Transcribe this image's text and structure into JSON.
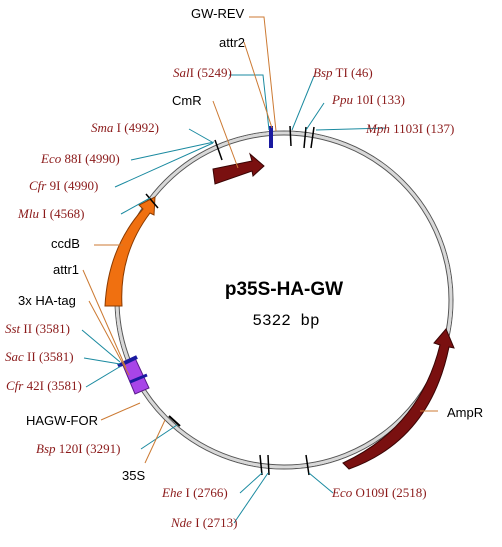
{
  "plasmid": {
    "name": "p35S-HA-GW",
    "size_label": "5322 bp",
    "backbone_color": "#c8c8c8",
    "site_line_color": "#1a8aa0",
    "feature_line_color": "#cc7a33"
  },
  "features": [
    {
      "key": "gwrev",
      "label": "GW-REV",
      "type": "primer",
      "color": "#1a1aa0"
    },
    {
      "key": "attr2",
      "label": "attr2",
      "type": "site",
      "color": "#1a1aa0"
    },
    {
      "key": "cmr",
      "label": "CmR",
      "type": "arrow",
      "color": "#7a1010"
    },
    {
      "key": "ccdb",
      "label": "ccdB",
      "type": "arrow",
      "color": "#f07010"
    },
    {
      "key": "attr1",
      "label": "attr1",
      "type": "site",
      "color": "#1a1aa0"
    },
    {
      "key": "ha",
      "label": "3x HA-tag",
      "type": "box",
      "color": "#a845e8"
    },
    {
      "key": "hagw",
      "label": "HAGW-FOR",
      "type": "primer",
      "color": "#1a1aa0"
    },
    {
      "key": "p35s",
      "label": "35S",
      "type": "promoter",
      "color": "#000000"
    },
    {
      "key": "ampr",
      "label": "AmpR",
      "type": "arrow",
      "color": "#7a1010"
    }
  ],
  "sites": [
    {
      "key": "sali",
      "name": "Sal",
      "suffix": "I",
      "pos": "(5249)"
    },
    {
      "key": "bspti",
      "name": "Bsp",
      "suffix": "TI",
      "pos": "(46)"
    },
    {
      "key": "ppu",
      "name": "Ppu",
      "suffix": "10I",
      "pos": "(133)"
    },
    {
      "key": "mph",
      "name": "Mph",
      "suffix": "1103I",
      "pos": "(137)"
    },
    {
      "key": "sma",
      "name": "Sma",
      "suffix": "I",
      "pos": "(4992)"
    },
    {
      "key": "eco88",
      "name": "Eco",
      "suffix": "88I",
      "pos": "(4990)"
    },
    {
      "key": "cfr9",
      "name": "Cfr",
      "suffix": "9I",
      "pos": "(4990)"
    },
    {
      "key": "mlu",
      "name": "Mlu",
      "suffix": "I",
      "pos": "(4568)"
    },
    {
      "key": "sst",
      "name": "Sst",
      "suffix": "II",
      "pos": "(3581)"
    },
    {
      "key": "sac",
      "name": "Sac",
      "suffix": "II",
      "pos": "(3581)"
    },
    {
      "key": "cfr42",
      "name": "Cfr",
      "suffix": "42I",
      "pos": "(3581)"
    },
    {
      "key": "bsp120",
      "name": "Bsp",
      "suffix": "120I",
      "pos": "(3291)"
    },
    {
      "key": "ehe",
      "name": "Ehe",
      "suffix": "I",
      "pos": "(2766)"
    },
    {
      "key": "nde",
      "name": "Nde",
      "suffix": "I",
      "pos": "(2713)"
    },
    {
      "key": "eco0109",
      "name": "Eco",
      "suffix": "O109I",
      "pos": "(2518)"
    }
  ]
}
